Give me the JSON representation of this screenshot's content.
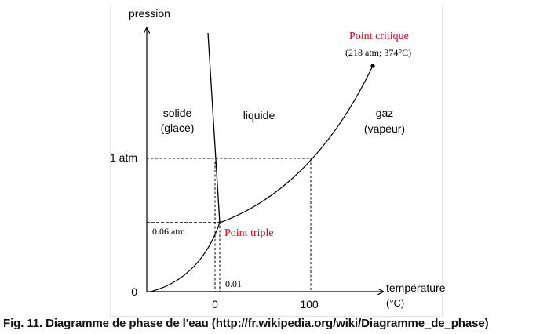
{
  "axes": {
    "y_label": "pression",
    "x_label": "température",
    "x_unit": "(°C)",
    "y_ticks": [
      "1 atm",
      "0"
    ],
    "x_ticks": [
      "0",
      "100"
    ]
  },
  "regions": {
    "solid": [
      "solide",
      "(glace)"
    ],
    "liquid": "liquide",
    "gas": [
      "gaz",
      "(vapeur)"
    ]
  },
  "points": {
    "critical": {
      "label": "Point critique",
      "coords": "(218 atm; 374°C)"
    },
    "triple": {
      "label": "Point triple",
      "pressure": "0.06 atm",
      "temperature": "0.01"
    }
  },
  "colors": {
    "highlight": "#e0001b",
    "lines": "#000000"
  },
  "caption": "Fig. 11. Diagramme de phase de l'eau (http://fr.wikipedia.org/wiki/Diagramme_de_phase)"
}
